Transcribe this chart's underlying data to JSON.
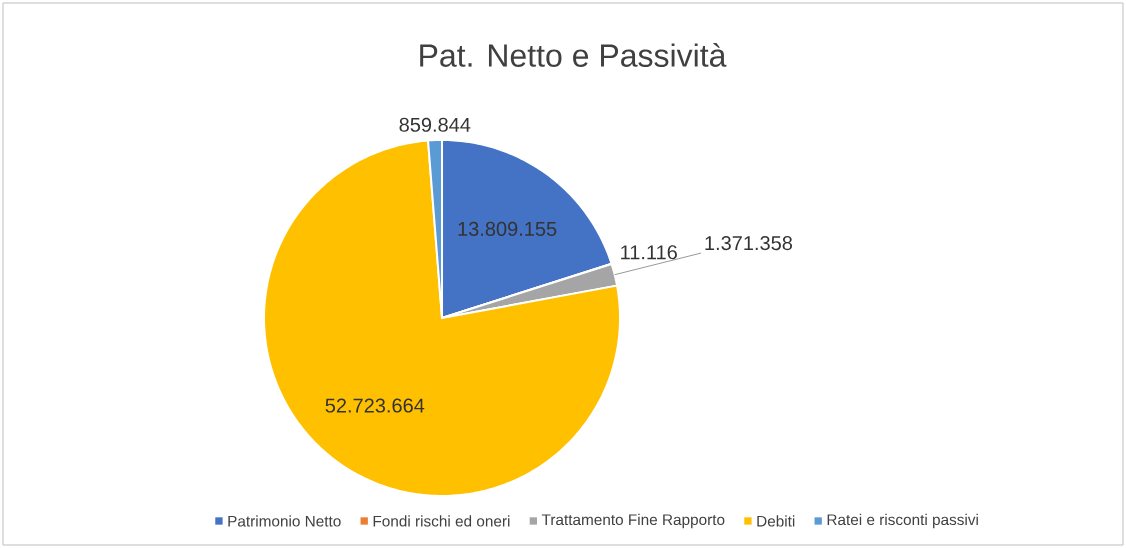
{
  "chart_data": {
    "type": "pie",
    "title": "Pat. Netto e Passività",
    "categories": [
      "Patrimonio Netto",
      "Fondi rischi ed oneri",
      "Trattamento Fine Rapporto",
      "Debiti",
      "Ratei e risconti passivi"
    ],
    "values": [
      13809155,
      11116,
      1371358,
      52723664,
      859844
    ],
    "value_labels": [
      "13.809.155",
      "11.116",
      "1.371.358",
      "52.723.664",
      "859.844"
    ],
    "colors": [
      "#4472c4",
      "#ed7d31",
      "#a5a5a5",
      "#ffc000",
      "#5b9bd5"
    ],
    "legend": "bottom"
  }
}
